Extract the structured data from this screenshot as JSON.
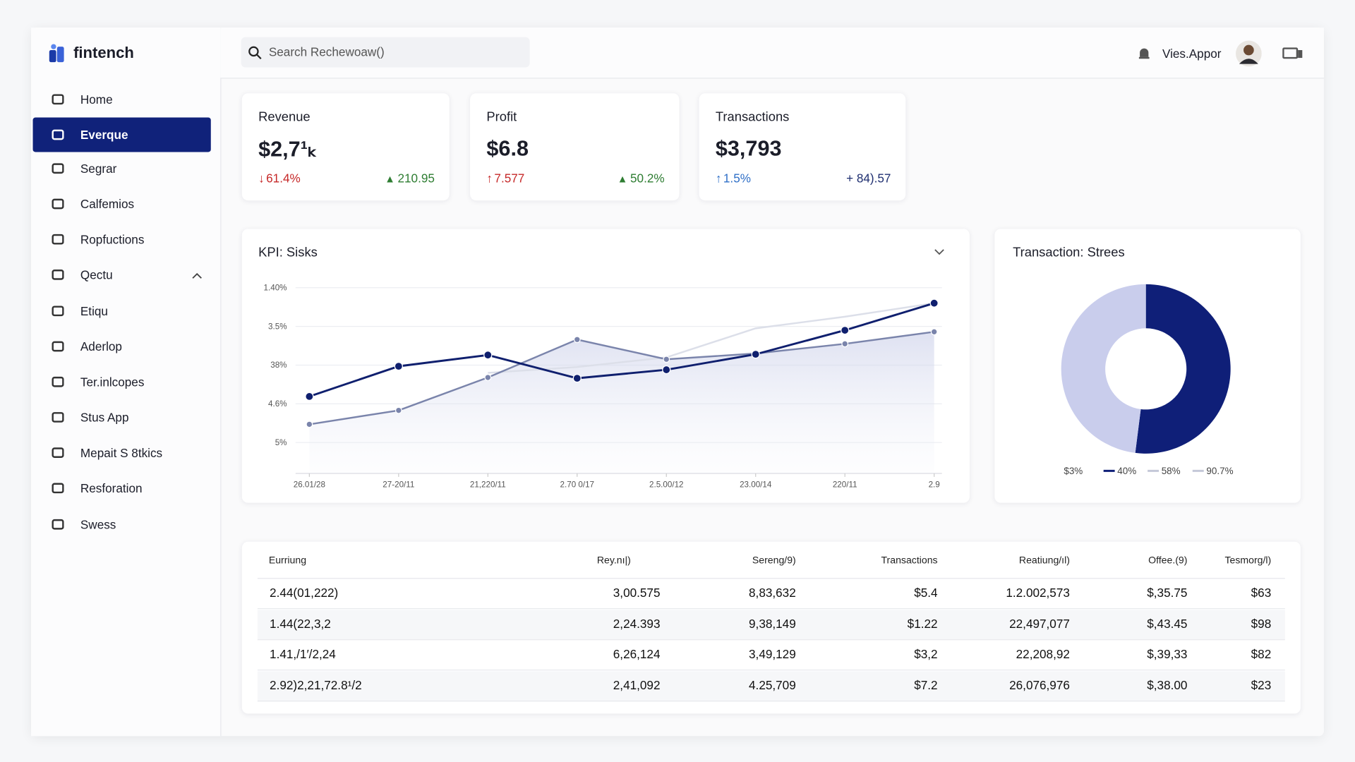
{
  "logo": "fintench",
  "search": "Search Rechewoaw()",
  "user": "Vies.Appor",
  "sidebar": [
    "Home",
    "Everque",
    "Segrar",
    "Calfemios",
    "Ropfuctions",
    "Qectu",
    "Etiqu",
    "Aderlop",
    "Ter.inlcopes",
    "Stus App",
    "Mepait S 8tkics",
    "Resforation",
    "Swess"
  ],
  "active_item": 1,
  "cards": [
    {
      "title": "Revenue",
      "value": "$2,7¹ₖ",
      "change_left": "61.4%",
      "change_right": "210.95"
    },
    {
      "title": "Profit",
      "value": "$6.8",
      "change_left": "7.577",
      "change_right": "50.2%"
    },
    {
      "title": "Transactions",
      "value": "$3,793",
      "change_left": "1.5%",
      "change_right": "+ 84).57"
    }
  ],
  "line_chart": {
    "type": "line",
    "title": "KPI: Sisks",
    "categories": [
      "26.01/28",
      "27-20/11",
      "21,220/11",
      "2.70 0/17",
      "2.5.00/12",
      "23.00/14",
      "220/11",
      "2.9"
    ],
    "ylim": [
      0,
      5
    ],
    "yticks": [
      {
        "value": 1,
        "label": "5%"
      },
      {
        "value": 2,
        "label": "4.6%"
      },
      {
        "value": 3,
        "label": "38%"
      },
      {
        "value": 4,
        "label": "3.5%"
      },
      {
        "value": 5,
        "label": "1.40%"
      }
    ],
    "grid": true,
    "series": [
      {
        "color": "#0f1f6e",
        "values": [
          2.19,
          2.97,
          3.26,
          2.66,
          2.88,
          3.28,
          3.9,
          4.6
        ]
      },
      {
        "color": "#7a84ab",
        "values": [
          1.47,
          1.83,
          2.68,
          3.66,
          3.15,
          3.3,
          3.55,
          3.86
        ]
      },
      {
        "color": "#dcdfe9",
        "values": [
          null,
          null,
          2.8,
          2.95,
          3.2,
          3.95,
          4.25,
          4.6
        ]
      }
    ]
  },
  "donut_chart": {
    "type": "donut",
    "title": "Transaction: Strees",
    "values": [
      52,
      48
    ],
    "colors": [
      "#0f1f78",
      "#c9cdec"
    ],
    "legend": [
      {
        "label": "$3%",
        "color": null
      },
      {
        "label": "40%",
        "color": "#0f1f78"
      },
      {
        "label": "58%",
        "color": "#c4c8d8"
      },
      {
        "label": "90.7%",
        "color": "#c4c8d8"
      }
    ]
  },
  "table": {
    "headers": [
      "Eurriung",
      "Rey.nı|)",
      "Sereng/9)",
      "Transactions",
      "Reatiung/ıl)",
      "Offee.(9)",
      "Tesmorg/l)"
    ],
    "rows": [
      [
        "2.44(01,222)",
        "3,00.575",
        "8,83,632",
        "$5.4",
        "1.2.002,573",
        "$,35.75",
        "$63"
      ],
      [
        "1.44(22,3,2",
        "2,24.393",
        "9,38,149",
        "$1.22",
        "22,497,077",
        "$,43.45",
        "$98"
      ],
      [
        "1.41,/1′/2,24",
        "6,26,124",
        "3,49,129",
        "$3,2",
        "22,208,92",
        "$,39,33",
        "$82"
      ],
      [
        "2.92)2,21,72.8¹/2",
        "2,41,092",
        "4.25,709",
        "$7.2",
        "26,076,976",
        "$,38.00",
        "$23"
      ]
    ]
  }
}
